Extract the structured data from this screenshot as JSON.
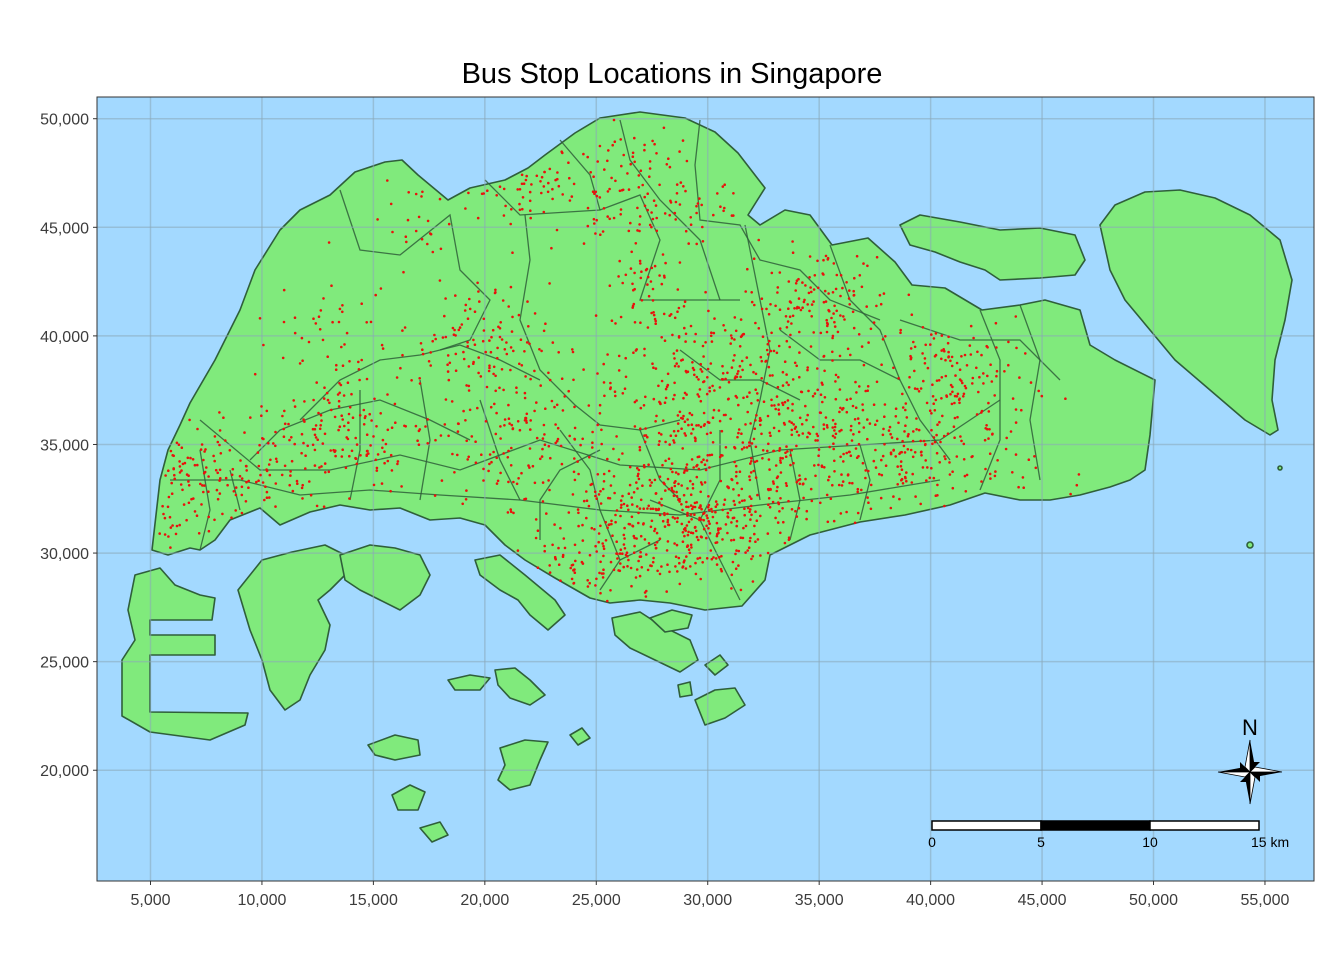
{
  "title": "Bus Stop Locations in Singapore",
  "colors": {
    "sea": "#a3d9ff",
    "land": "#80ea7c",
    "boundary": "#2f5f3a",
    "bus_stop": "#e8120c",
    "grid": "#8aa7b8"
  },
  "chart_data": {
    "type": "scatter",
    "title": "Bus Stop Locations in Singapore",
    "xlabel": "",
    "ylabel": "",
    "xlim": [
      2600,
      57200
    ],
    "ylim": [
      14900,
      51000
    ],
    "x_ticks": [
      5000,
      10000,
      15000,
      20000,
      25000,
      30000,
      35000,
      40000,
      45000,
      50000,
      55000
    ],
    "x_tick_labels": [
      "5,000",
      "10,000",
      "15,000",
      "20,000",
      "25,000",
      "30,000",
      "35,000",
      "40,000",
      "45,000",
      "50,000",
      "55,000"
    ],
    "y_ticks": [
      20000,
      25000,
      30000,
      35000,
      40000,
      45000,
      50000
    ],
    "y_tick_labels": [
      "20,000",
      "25,000",
      "30,000",
      "35,000",
      "40,000",
      "45,000",
      "50,000"
    ],
    "grid": true,
    "series": [
      {
        "marker": "point",
        "clusters": [
          {
            "x": 29500,
            "y": 31000,
            "sx": 2200,
            "sy": 1300,
            "n": 260
          },
          {
            "x": 26500,
            "y": 32000,
            "sx": 2600,
            "sy": 1600,
            "n": 150
          },
          {
            "x": 33500,
            "y": 34000,
            "sx": 2200,
            "sy": 1400,
            "n": 170
          },
          {
            "x": 29000,
            "y": 35500,
            "sx": 2000,
            "sy": 1800,
            "n": 150
          },
          {
            "x": 30500,
            "y": 38500,
            "sx": 2300,
            "sy": 1500,
            "n": 170
          },
          {
            "x": 35000,
            "y": 41500,
            "sx": 1700,
            "sy": 1300,
            "n": 140
          },
          {
            "x": 39500,
            "y": 34000,
            "sx": 2600,
            "sy": 1200,
            "n": 170
          },
          {
            "x": 41000,
            "y": 37800,
            "sx": 1700,
            "sy": 1700,
            "n": 160
          },
          {
            "x": 21000,
            "y": 35800,
            "sx": 2200,
            "sy": 1700,
            "n": 160
          },
          {
            "x": 19500,
            "y": 39800,
            "sx": 1700,
            "sy": 1300,
            "n": 110
          },
          {
            "x": 13500,
            "y": 35500,
            "sx": 2000,
            "sy": 1400,
            "n": 150
          },
          {
            "x": 9000,
            "y": 33500,
            "sx": 1800,
            "sy": 1200,
            "n": 110
          },
          {
            "x": 5500,
            "y": 33500,
            "sx": 1000,
            "sy": 1700,
            "n": 90
          },
          {
            "x": 27000,
            "y": 46500,
            "sx": 2000,
            "sy": 1500,
            "n": 140
          },
          {
            "x": 21500,
            "y": 46800,
            "sx": 1300,
            "sy": 1000,
            "n": 60
          },
          {
            "x": 27000,
            "y": 42000,
            "sx": 1000,
            "sy": 1200,
            "n": 50
          },
          {
            "x": 17000,
            "y": 45500,
            "sx": 800,
            "sy": 1200,
            "n": 25
          },
          {
            "x": 12500,
            "y": 40000,
            "sx": 1400,
            "sy": 1200,
            "n": 40
          },
          {
            "x": 35500,
            "y": 36500,
            "sx": 1400,
            "sy": 1100,
            "n": 70
          },
          {
            "x": 24500,
            "y": 29500,
            "sx": 1600,
            "sy": 800,
            "n": 70
          }
        ]
      }
    ]
  },
  "map_elements": {
    "north_arrow_label": "N",
    "scale_bar_labels": [
      "0",
      "5",
      "10",
      "15 km"
    ]
  }
}
